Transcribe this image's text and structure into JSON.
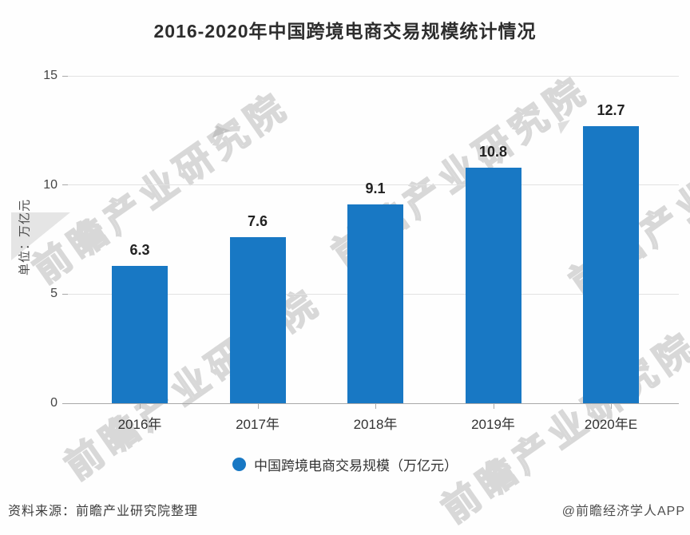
{
  "chart_data": {
    "type": "bar",
    "title": "2016-2020年中国跨境电商交易规模统计情况",
    "categories": [
      "2016年",
      "2017年",
      "2018年",
      "2019年",
      "2020年E"
    ],
    "values": [
      6.3,
      7.6,
      9.1,
      10.8,
      12.7
    ],
    "ylabel": "单位：万亿元",
    "ylim": [
      0,
      15
    ],
    "yticks": [
      0,
      5,
      10,
      15
    ],
    "grid": true,
    "legend": "中国跨境电商交易规模（万亿元）",
    "legend_position": "bottom",
    "bar_color": "#1878c4"
  },
  "watermark": {
    "text": "前瞻产业研究院"
  },
  "footer": {
    "source": "资料来源：前瞻产业研究院整理",
    "credit": "@前瞻经济学人APP"
  }
}
